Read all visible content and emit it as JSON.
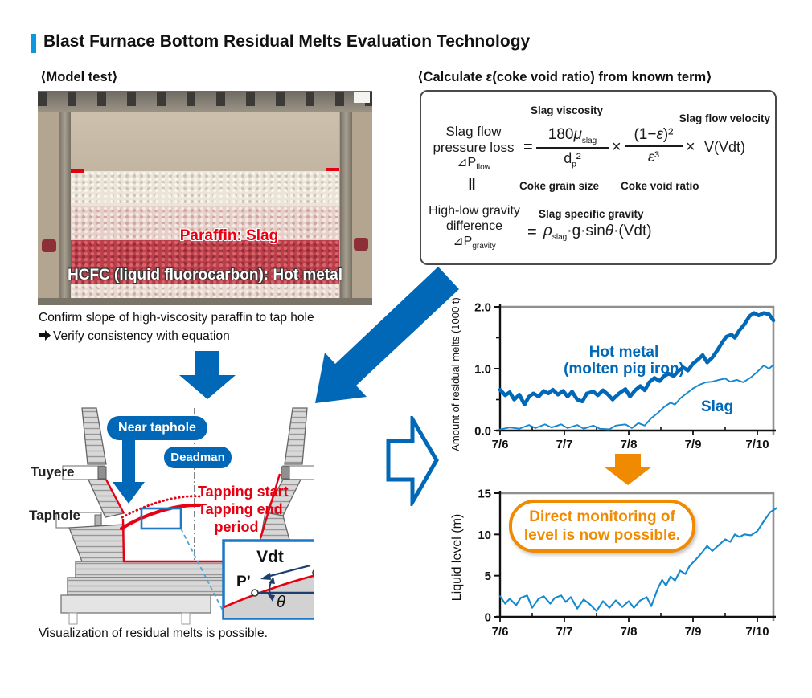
{
  "title": "Blast Furnace Bottom Residual Melts Evaluation Technology",
  "colors": {
    "accent_blue": "#0a99e0",
    "primary_blue": "#0068b7",
    "chart_blue": "#1488d0",
    "red": "#e60012",
    "orange": "#f08a00",
    "label_blue": "#0075c2"
  },
  "model_test": {
    "heading": "⟨Model test⟩",
    "photo_labels": {
      "slag": "Paraffin: Slag",
      "hot_metal": "HCFC (liquid fluorocarbon): Hot metal"
    },
    "caption_line1": "Confirm slope of high-viscosity paraffin to tap hole",
    "caption_line2": "Verify consistency with equation"
  },
  "equation": {
    "heading": "⟨Calculate ε(coke void ratio) from known term⟩",
    "labels": {
      "slag_viscosity": "Slag viscosity",
      "slag_flow_velocity": "Slag flow velocity",
      "coke_grain_size": "Coke grain size",
      "coke_void_ratio": "Coke void ratio",
      "slag_specific_gravity": "Slag specific gravity"
    },
    "lhs1_line1": "Slag flow",
    "lhs1_line2": "pressure loss",
    "lhs1_delta": "⊿P",
    "lhs1_delta_sub": "flow",
    "eq_sign": "=",
    "times": "×",
    "eq1_num_pre": "180",
    "eq1_num_mu": "μ",
    "eq1_num_sub": "slag",
    "eq1_den": "d",
    "eq1_den_sub": "p",
    "eq1_den_sup": "²",
    "eq2_num_pre": "(1−",
    "eq2_eps": "ε",
    "eq2_num_post": ")²",
    "eq2_den_eps": "ε",
    "eq2_den_sup": "³",
    "eq1_tail": "V(Vdt)",
    "equiv": "‖",
    "lhs2_line1": "High-low gravity",
    "lhs2_line2": "difference",
    "lhs2_delta": "⊿P",
    "lhs2_delta_sub": "gravity",
    "rhs2_rho": "ρ",
    "rhs2_rho_sub": "slag",
    "rhs2_mid": "·g·sin",
    "rhs2_theta": "θ",
    "rhs2_tail": "·(Vdt)"
  },
  "diagram": {
    "near_taphole": "Near taphole",
    "deadman": "Deadman",
    "tuyere": "Tuyere",
    "taphole": "Taphole",
    "tapping_start": "Tapping start",
    "tapping_end_line1": "Tapping end",
    "tapping_end_line2": "period",
    "inset": {
      "vdt": "Vdt",
      "p": "P",
      "p_prime": "P’",
      "theta": "θ"
    },
    "caption": "Visualization of residual melts is possible."
  },
  "callout": {
    "line1": "Direct monitoring of",
    "line2": "level is now possible."
  },
  "chart_data": [
    {
      "type": "line",
      "title": "Amount of residual melts",
      "ylabel": "Amount of residual melts (1000 t)",
      "xlabel": "",
      "x_ticks": [
        "7/6",
        "7/7",
        "7/8",
        "7/9",
        "7/10"
      ],
      "y_tick_labels": [
        "0.0",
        "1.0",
        "2.0"
      ],
      "ylim": [
        0,
        2.0
      ],
      "xlim_days": [
        0,
        4.25
      ],
      "legend_position": "inline-labels",
      "grid": false,
      "series": [
        {
          "name": "Hot metal (molten pig iron)",
          "label_lines": [
            "Hot metal",
            "(molten pig iron)"
          ],
          "points": [
            [
              0,
              0.66
            ],
            [
              0.08,
              0.57
            ],
            [
              0.15,
              0.62
            ],
            [
              0.22,
              0.5
            ],
            [
              0.3,
              0.58
            ],
            [
              0.38,
              0.42
            ],
            [
              0.45,
              0.55
            ],
            [
              0.52,
              0.6
            ],
            [
              0.6,
              0.55
            ],
            [
              0.68,
              0.64
            ],
            [
              0.75,
              0.6
            ],
            [
              0.82,
              0.66
            ],
            [
              0.9,
              0.58
            ],
            [
              0.98,
              0.64
            ],
            [
              1.05,
              0.55
            ],
            [
              1.12,
              0.63
            ],
            [
              1.2,
              0.5
            ],
            [
              1.28,
              0.47
            ],
            [
              1.35,
              0.6
            ],
            [
              1.45,
              0.63
            ],
            [
              1.52,
              0.57
            ],
            [
              1.6,
              0.65
            ],
            [
              1.68,
              0.58
            ],
            [
              1.75,
              0.5
            ],
            [
              1.85,
              0.6
            ],
            [
              1.95,
              0.67
            ],
            [
              2.02,
              0.55
            ],
            [
              2.1,
              0.65
            ],
            [
              2.18,
              0.72
            ],
            [
              2.25,
              0.65
            ],
            [
              2.32,
              0.78
            ],
            [
              2.4,
              0.85
            ],
            [
              2.48,
              0.8
            ],
            [
              2.55,
              0.88
            ],
            [
              2.62,
              0.92
            ],
            [
              2.7,
              0.88
            ],
            [
              2.78,
              0.97
            ],
            [
              2.85,
              1.02
            ],
            [
              2.92,
              0.97
            ],
            [
              3.0,
              1.08
            ],
            [
              3.08,
              1.15
            ],
            [
              3.15,
              1.22
            ],
            [
              3.22,
              1.1
            ],
            [
              3.3,
              1.18
            ],
            [
              3.38,
              1.3
            ],
            [
              3.45,
              1.42
            ],
            [
              3.52,
              1.52
            ],
            [
              3.6,
              1.55
            ],
            [
              3.65,
              1.5
            ],
            [
              3.72,
              1.62
            ],
            [
              3.8,
              1.72
            ],
            [
              3.88,
              1.85
            ],
            [
              3.95,
              1.9
            ],
            [
              4.02,
              1.86
            ],
            [
              4.1,
              1.9
            ],
            [
              4.18,
              1.88
            ],
            [
              4.25,
              1.78
            ]
          ]
        },
        {
          "name": "Slag",
          "label_lines": [
            "Slag"
          ],
          "points": [
            [
              0,
              0.02
            ],
            [
              0.15,
              0.05
            ],
            [
              0.3,
              0.03
            ],
            [
              0.45,
              0.09
            ],
            [
              0.55,
              0.04
            ],
            [
              0.7,
              0.1
            ],
            [
              0.8,
              0.05
            ],
            [
              0.95,
              0.1
            ],
            [
              1.05,
              0.04
            ],
            [
              1.2,
              0.09
            ],
            [
              1.3,
              0.03
            ],
            [
              1.45,
              0.08
            ],
            [
              1.55,
              0.03
            ],
            [
              1.7,
              0.02
            ],
            [
              1.8,
              0.08
            ],
            [
              1.95,
              0.1
            ],
            [
              2.05,
              0.04
            ],
            [
              2.15,
              0.12
            ],
            [
              2.25,
              0.08
            ],
            [
              2.35,
              0.2
            ],
            [
              2.45,
              0.28
            ],
            [
              2.55,
              0.38
            ],
            [
              2.65,
              0.45
            ],
            [
              2.72,
              0.42
            ],
            [
              2.8,
              0.52
            ],
            [
              2.9,
              0.6
            ],
            [
              3.0,
              0.68
            ],
            [
              3.1,
              0.74
            ],
            [
              3.2,
              0.78
            ],
            [
              3.3,
              0.79
            ],
            [
              3.4,
              0.82
            ],
            [
              3.5,
              0.84
            ],
            [
              3.58,
              0.79
            ],
            [
              3.68,
              0.82
            ],
            [
              3.78,
              0.78
            ],
            [
              3.9,
              0.86
            ],
            [
              4.0,
              0.95
            ],
            [
              4.1,
              1.05
            ],
            [
              4.18,
              1.0
            ],
            [
              4.25,
              1.06
            ]
          ]
        }
      ]
    },
    {
      "type": "line",
      "title": "Liquid level",
      "ylabel": "Liquid level (m)",
      "xlabel": "",
      "x_ticks": [
        "7/6",
        "7/7",
        "7/8",
        "7/9",
        "7/10"
      ],
      "y_tick_labels": [
        "0",
        "5",
        "10",
        "15"
      ],
      "ylim": [
        0,
        15
      ],
      "xlim_days": [
        0,
        4.3
      ],
      "grid": false,
      "series": [
        {
          "name": "Liquid level",
          "label_lines": [],
          "points": [
            [
              0,
              2.5
            ],
            [
              0.08,
              1.6
            ],
            [
              0.15,
              2.2
            ],
            [
              0.25,
              1.4
            ],
            [
              0.32,
              2.3
            ],
            [
              0.42,
              2.6
            ],
            [
              0.5,
              1.1
            ],
            [
              0.6,
              2.2
            ],
            [
              0.68,
              2.5
            ],
            [
              0.78,
              1.6
            ],
            [
              0.85,
              2.3
            ],
            [
              0.95,
              2.6
            ],
            [
              1.02,
              1.8
            ],
            [
              1.1,
              2.4
            ],
            [
              1.2,
              1.0
            ],
            [
              1.3,
              2.1
            ],
            [
              1.4,
              1.5
            ],
            [
              1.5,
              0.7
            ],
            [
              1.6,
              1.9
            ],
            [
              1.7,
              1.1
            ],
            [
              1.8,
              2.0
            ],
            [
              1.9,
              1.2
            ],
            [
              2.0,
              1.9
            ],
            [
              2.08,
              1.1
            ],
            [
              2.18,
              2.0
            ],
            [
              2.28,
              2.4
            ],
            [
              2.35,
              1.3
            ],
            [
              2.45,
              3.4
            ],
            [
              2.52,
              4.5
            ],
            [
              2.58,
              3.8
            ],
            [
              2.65,
              4.9
            ],
            [
              2.72,
              4.4
            ],
            [
              2.8,
              5.6
            ],
            [
              2.88,
              5.2
            ],
            [
              2.95,
              6.2
            ],
            [
              3.05,
              7.0
            ],
            [
              3.15,
              7.9
            ],
            [
              3.22,
              8.6
            ],
            [
              3.3,
              8.0
            ],
            [
              3.4,
              8.7
            ],
            [
              3.5,
              9.4
            ],
            [
              3.58,
              9.1
            ],
            [
              3.65,
              10.0
            ],
            [
              3.72,
              9.7
            ],
            [
              3.8,
              10.0
            ],
            [
              3.9,
              9.9
            ],
            [
              4.0,
              10.4
            ],
            [
              4.1,
              11.6
            ],
            [
              4.2,
              12.7
            ],
            [
              4.3,
              13.2
            ]
          ]
        }
      ]
    }
  ]
}
